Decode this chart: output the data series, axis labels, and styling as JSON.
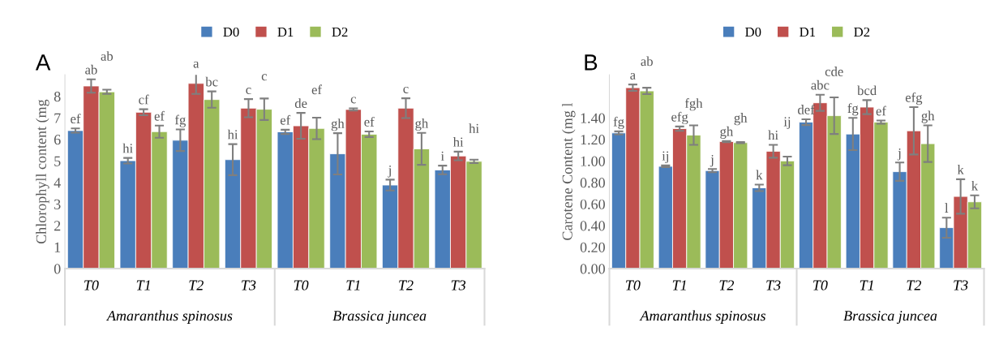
{
  "chart_data": [
    {
      "type": "bar",
      "title": "A",
      "ylabel": "Chlorophyll content (mg",
      "categories": [
        "T0",
        "T1",
        "T2",
        "T3",
        "T0",
        "T1",
        "T2",
        "T3"
      ],
      "annotations": [
        "Amaranthus spinosus",
        "Brassica juncea"
      ],
      "ylim": [
        0,
        9
      ],
      "yticks": [
        0,
        1,
        2,
        3,
        4,
        5,
        6,
        7,
        8
      ],
      "grid": false,
      "legend": "top",
      "series": [
        {
          "name": "D0",
          "color": "#4a7ebb",
          "values": [
            6.41,
            5.01,
            5.96,
            5.06,
            6.35,
            5.33,
            3.88,
            4.58
          ],
          "errors": [
            0.1,
            0.13,
            0.5,
            0.72,
            0.1,
            0.96,
            0.25,
            0.2
          ],
          "value_labels": [
            "ef",
            "hi",
            "fg",
            "hi",
            "ef",
            "gh",
            "j",
            "i"
          ]
        },
        {
          "name": "D1",
          "color": "#c0504d",
          "values": [
            8.48,
            7.26,
            8.6,
            7.45,
            6.63,
            7.39,
            7.45,
            5.23
          ],
          "errors": [
            0.31,
            0.14,
            0.49,
            0.42,
            0.6,
            0.05,
            0.46,
            0.2
          ],
          "value_labels": [
            "ab",
            "cf",
            "a",
            "c",
            "de",
            "c",
            "c",
            "hi"
          ]
        },
        {
          "name": "D2",
          "color": "#9bbb59",
          "values": [
            8.21,
            6.36,
            7.85,
            7.4,
            6.51,
            6.24,
            5.56,
            4.98
          ],
          "errors": [
            0.1,
            0.28,
            0.38,
            0.5,
            0.5,
            0.13,
            0.74,
            0.08
          ],
          "value_labels": [
            "ab",
            "ef",
            "bc",
            "c",
            "ef",
            "ef",
            "gh",
            "hi"
          ]
        }
      ]
    },
    {
      "type": "bar",
      "title": "B",
      "ylabel": "Carotene Content (mg l",
      "categories": [
        "T0",
        "T1",
        "T2",
        "T3",
        "T0",
        "T1",
        "T2",
        "T3"
      ],
      "annotations": [
        "Amaranthus spinosus",
        "Brassica juncea"
      ],
      "ylim": [
        0,
        1.8
      ],
      "yticks": [
        {
          "value": 0,
          "label": "0.00"
        },
        {
          "value": 0.2,
          "label": "0.20"
        },
        {
          "value": 0.4,
          "label": "0.40"
        },
        {
          "value": 0.6,
          "label": "0.60"
        },
        {
          "value": 0.8,
          "label": "0.80"
        },
        {
          "value": 1.0,
          "label": "1.00"
        },
        {
          "value": 1.2,
          "label": "1.20"
        },
        {
          "value": 1.4,
          "label": "1.40"
        }
      ],
      "grid": false,
      "legend": "top",
      "series": [
        {
          "name": "D0",
          "color": "#4a7ebb",
          "values": [
            1.26,
            0.95,
            0.91,
            0.75,
            1.36,
            1.25,
            0.9,
            0.38
          ],
          "errors": [
            0.015,
            0.008,
            0.015,
            0.03,
            0.027,
            0.15,
            0.085,
            0.093
          ],
          "value_labels": [
            "fg",
            "ij",
            "j",
            "k",
            "def",
            "fg",
            "j",
            "l"
          ]
        },
        {
          "name": "D1",
          "color": "#c0504d",
          "values": [
            1.68,
            1.3,
            1.18,
            1.09,
            1.54,
            1.5,
            1.28,
            0.67
          ],
          "errors": [
            0.03,
            0.02,
            0.005,
            0.06,
            0.075,
            0.065,
            0.22,
            0.16
          ],
          "value_labels": [
            "a",
            "efg",
            "gh",
            "hi",
            "abc",
            "bcd",
            "efg",
            "k"
          ]
        },
        {
          "name": "D2",
          "color": "#9bbb59",
          "values": [
            1.65,
            1.24,
            1.17,
            1.0,
            1.42,
            1.36,
            1.16,
            0.62
          ],
          "errors": [
            0.03,
            0.09,
            0.005,
            0.04,
            0.17,
            0.015,
            0.17,
            0.06
          ],
          "value_labels": [
            "ab",
            "fgh",
            "gh",
            "ij",
            "cde",
            "ef",
            "gh",
            "k"
          ]
        }
      ]
    }
  ]
}
